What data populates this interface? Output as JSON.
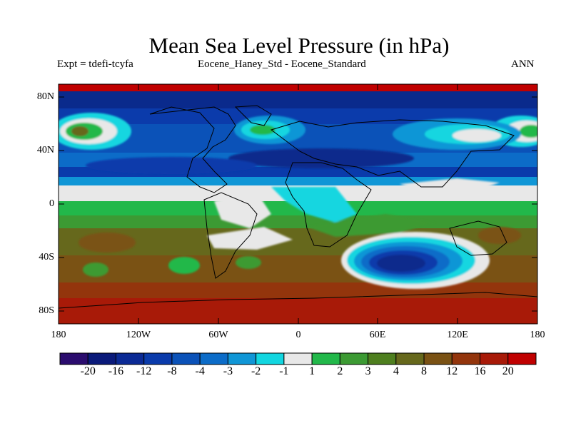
{
  "title": "Mean Sea Level Pressure (in hPa)",
  "subtitle_left": "Expt = tdefi-tcyfa",
  "subtitle_center": "Eocene_Haney_Std - Eocene_Standard",
  "subtitle_right": "ANN",
  "y_ticks": [
    "80N",
    "40N",
    "0",
    "40S",
    "80S"
  ],
  "x_ticks": [
    "180",
    "120W",
    "60W",
    "0",
    "60E",
    "120E",
    "180"
  ],
  "colorbar": {
    "labels": [
      "-20",
      "-16",
      "-12",
      "-8",
      "-4",
      "-3",
      "-2",
      "-1",
      "1",
      "2",
      "3",
      "4",
      "8",
      "12",
      "16",
      "20"
    ],
    "colors": [
      "#2b0c6e",
      "#0a1a7a",
      "#0b2a95",
      "#0a3bab",
      "#0b52b8",
      "#0c6cc8",
      "#1096d6",
      "#12d6e0",
      "#e8e8e8",
      "#22b84a",
      "#3c9a33",
      "#4e7f1f",
      "#66681c",
      "#7a5214",
      "#93350c",
      "#a81a08",
      "#c00000"
    ]
  }
}
